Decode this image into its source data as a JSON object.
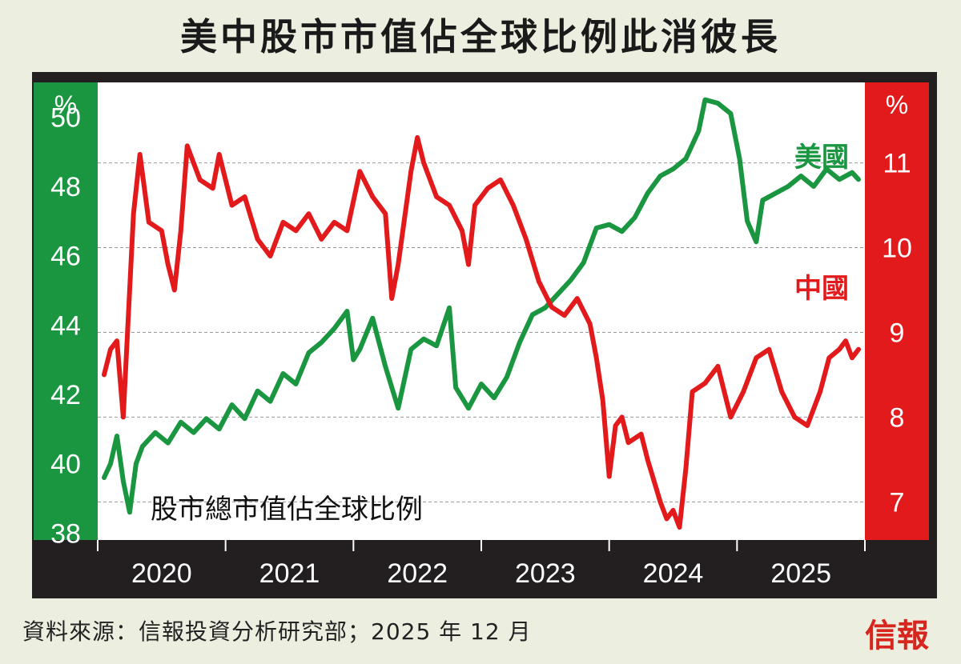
{
  "title": "美中股市市值佔全球比例此消彼長",
  "source": "資料來源：信報投資分析研究部；2025 年 12 月",
  "logo": "信報",
  "colors": {
    "us": "#1a9641",
    "china": "#e31a1c",
    "frame": "#231f20"
  },
  "chart_data": {
    "type": "line",
    "title": "股市總市值佔全球比例",
    "x_labels": [
      "2020",
      "2021",
      "2022",
      "2023",
      "2024",
      "2025"
    ],
    "left_axis": {
      "label": "%",
      "ticks": [
        38,
        40,
        42,
        44,
        46,
        48,
        50
      ],
      "range": [
        37.8,
        51
      ]
    },
    "right_axis": {
      "label": "%",
      "ticks": [
        7,
        8,
        9,
        10,
        11
      ],
      "range": [
        6.55,
        11.95
      ]
    },
    "x_range": [
      2020.0,
      2026.0
    ],
    "grid": "dashed, right axis ticks",
    "series": [
      {
        "name": "美國",
        "axis": "left",
        "points": [
          [
            2020.05,
            39.6
          ],
          [
            2020.1,
            40.0
          ],
          [
            2020.15,
            40.8
          ],
          [
            2020.2,
            39.5
          ],
          [
            2020.25,
            38.6
          ],
          [
            2020.3,
            40.0
          ],
          [
            2020.35,
            40.5
          ],
          [
            2020.45,
            40.9
          ],
          [
            2020.55,
            40.6
          ],
          [
            2020.65,
            41.2
          ],
          [
            2020.75,
            40.9
          ],
          [
            2020.85,
            41.3
          ],
          [
            2020.95,
            41.0
          ],
          [
            2021.05,
            41.7
          ],
          [
            2021.15,
            41.3
          ],
          [
            2021.25,
            42.1
          ],
          [
            2021.35,
            41.8
          ],
          [
            2021.45,
            42.6
          ],
          [
            2021.55,
            42.3
          ],
          [
            2021.65,
            43.2
          ],
          [
            2021.75,
            43.5
          ],
          [
            2021.85,
            43.9
          ],
          [
            2021.95,
            44.4
          ],
          [
            2022.0,
            43.0
          ],
          [
            2022.05,
            43.3
          ],
          [
            2022.15,
            44.2
          ],
          [
            2022.25,
            42.8
          ],
          [
            2022.35,
            41.6
          ],
          [
            2022.45,
            43.3
          ],
          [
            2022.55,
            43.6
          ],
          [
            2022.65,
            43.4
          ],
          [
            2022.75,
            44.5
          ],
          [
            2022.8,
            42.2
          ],
          [
            2022.9,
            41.6
          ],
          [
            2023.0,
            42.3
          ],
          [
            2023.1,
            41.9
          ],
          [
            2023.2,
            42.5
          ],
          [
            2023.3,
            43.5
          ],
          [
            2023.4,
            44.3
          ],
          [
            2023.5,
            44.5
          ],
          [
            2023.6,
            44.9
          ],
          [
            2023.7,
            45.3
          ],
          [
            2023.8,
            45.8
          ],
          [
            2023.9,
            46.8
          ],
          [
            2024.0,
            46.9
          ],
          [
            2024.1,
            46.7
          ],
          [
            2024.2,
            47.1
          ],
          [
            2024.3,
            47.8
          ],
          [
            2024.4,
            48.3
          ],
          [
            2024.5,
            48.5
          ],
          [
            2024.6,
            48.8
          ],
          [
            2024.7,
            49.6
          ],
          [
            2024.75,
            50.5
          ],
          [
            2024.85,
            50.4
          ],
          [
            2024.95,
            50.1
          ],
          [
            2025.02,
            48.8
          ],
          [
            2025.08,
            47.0
          ],
          [
            2025.15,
            46.4
          ],
          [
            2025.2,
            47.6
          ],
          [
            2025.3,
            47.8
          ],
          [
            2025.4,
            48.0
          ],
          [
            2025.5,
            48.3
          ],
          [
            2025.6,
            48.0
          ],
          [
            2025.7,
            48.5
          ],
          [
            2025.8,
            48.2
          ],
          [
            2025.9,
            48.4
          ],
          [
            2025.95,
            48.2
          ]
        ]
      },
      {
        "name": "中國",
        "axis": "right",
        "points": [
          [
            2020.05,
            8.5
          ],
          [
            2020.1,
            8.8
          ],
          [
            2020.15,
            8.9
          ],
          [
            2020.2,
            8.0
          ],
          [
            2020.25,
            9.5
          ],
          [
            2020.28,
            10.4
          ],
          [
            2020.33,
            11.1
          ],
          [
            2020.4,
            10.3
          ],
          [
            2020.5,
            10.2
          ],
          [
            2020.55,
            9.8
          ],
          [
            2020.6,
            9.5
          ],
          [
            2020.65,
            10.2
          ],
          [
            2020.7,
            11.2
          ],
          [
            2020.8,
            10.8
          ],
          [
            2020.9,
            10.7
          ],
          [
            2020.95,
            11.1
          ],
          [
            2021.05,
            10.5
          ],
          [
            2021.15,
            10.6
          ],
          [
            2021.25,
            10.1
          ],
          [
            2021.35,
            9.9
          ],
          [
            2021.45,
            10.3
          ],
          [
            2021.55,
            10.2
          ],
          [
            2021.65,
            10.4
          ],
          [
            2021.75,
            10.1
          ],
          [
            2021.85,
            10.3
          ],
          [
            2021.95,
            10.2
          ],
          [
            2022.05,
            10.9
          ],
          [
            2022.15,
            10.6
          ],
          [
            2022.25,
            10.4
          ],
          [
            2022.3,
            9.4
          ],
          [
            2022.35,
            9.8
          ],
          [
            2022.45,
            10.9
          ],
          [
            2022.5,
            11.3
          ],
          [
            2022.55,
            11.0
          ],
          [
            2022.65,
            10.6
          ],
          [
            2022.75,
            10.5
          ],
          [
            2022.85,
            10.2
          ],
          [
            2022.9,
            9.8
          ],
          [
            2022.95,
            10.5
          ],
          [
            2023.05,
            10.7
          ],
          [
            2023.15,
            10.8
          ],
          [
            2023.25,
            10.5
          ],
          [
            2023.35,
            10.1
          ],
          [
            2023.45,
            9.6
          ],
          [
            2023.55,
            9.3
          ],
          [
            2023.65,
            9.2
          ],
          [
            2023.75,
            9.4
          ],
          [
            2023.85,
            9.1
          ],
          [
            2023.9,
            8.7
          ],
          [
            2023.95,
            8.2
          ],
          [
            2024.0,
            7.3
          ],
          [
            2024.05,
            7.9
          ],
          [
            2024.1,
            8.0
          ],
          [
            2024.15,
            7.7
          ],
          [
            2024.25,
            7.8
          ],
          [
            2024.3,
            7.5
          ],
          [
            2024.4,
            7.0
          ],
          [
            2024.45,
            6.8
          ],
          [
            2024.5,
            6.9
          ],
          [
            2024.55,
            6.7
          ],
          [
            2024.6,
            7.4
          ],
          [
            2024.65,
            8.3
          ],
          [
            2024.75,
            8.4
          ],
          [
            2024.85,
            8.6
          ],
          [
            2024.95,
            8.0
          ],
          [
            2025.05,
            8.3
          ],
          [
            2025.15,
            8.7
          ],
          [
            2025.25,
            8.8
          ],
          [
            2025.35,
            8.3
          ],
          [
            2025.45,
            8.0
          ],
          [
            2025.55,
            7.9
          ],
          [
            2025.65,
            8.3
          ],
          [
            2025.72,
            8.7
          ],
          [
            2025.8,
            8.8
          ],
          [
            2025.85,
            8.9
          ],
          [
            2025.9,
            8.7
          ],
          [
            2025.95,
            8.8
          ]
        ]
      }
    ]
  }
}
